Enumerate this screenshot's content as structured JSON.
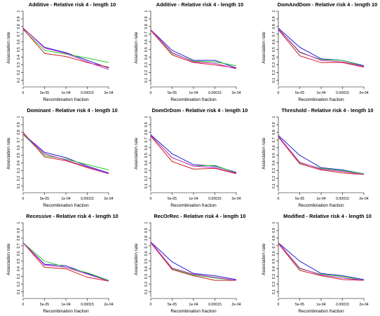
{
  "figure": {
    "x_ticks": [
      "0",
      "5e-05",
      "1e-04",
      "0.00015",
      "2e-04"
    ],
    "y_ticks": [
      "0.1",
      "0.2",
      "0.3",
      "0.4",
      "0.5",
      "0.6",
      "0.7",
      "0.8",
      "0.9",
      "1"
    ],
    "series_colors": [
      "#2222cc",
      "#22cc22",
      "#cc2222",
      "#cc22cc"
    ]
  },
  "chart_data": [
    {
      "type": "line",
      "title": "Additive  - Relative risk 4 - length 10",
      "xlabel": "Recombination fraction",
      "ylabel": "Association rate",
      "x": [
        0,
        5e-05,
        0.0001,
        0.00015,
        0.0002
      ],
      "ylim": [
        0.05,
        1.0
      ],
      "series": [
        {
          "values": [
            0.78,
            0.53,
            0.46,
            0.36,
            0.26
          ]
        },
        {
          "values": [
            0.76,
            0.49,
            0.44,
            0.39,
            0.33
          ]
        },
        {
          "values": [
            0.77,
            0.45,
            0.41,
            0.33,
            0.27
          ]
        },
        {
          "values": [
            0.78,
            0.52,
            0.45,
            0.34,
            0.24
          ]
        }
      ]
    },
    {
      "type": "line",
      "title": "Additive  - Relative risk 4 - length 10",
      "xlabel": "Recombination fraction",
      "ylabel": "Association rate",
      "x": [
        0,
        5e-05,
        0.0001,
        0.00015,
        0.0002
      ],
      "ylim": [
        0.05,
        1.0
      ],
      "series": [
        {
          "values": [
            0.76,
            0.49,
            0.36,
            0.36,
            0.26
          ]
        },
        {
          "values": [
            0.76,
            0.45,
            0.35,
            0.34,
            0.29
          ]
        },
        {
          "values": [
            0.75,
            0.43,
            0.33,
            0.3,
            0.26
          ]
        },
        {
          "values": [
            0.76,
            0.46,
            0.34,
            0.32,
            0.25
          ]
        }
      ]
    },
    {
      "type": "line",
      "title": "DomAndDom  - Relative risk 4 - length 10",
      "xlabel": "Recombination fraction",
      "ylabel": "Association rate",
      "x": [
        0,
        5e-05,
        0.0001,
        0.00015,
        0.0002
      ],
      "ylim": [
        0.05,
        1.0
      ],
      "series": [
        {
          "values": [
            0.78,
            0.53,
            0.38,
            0.36,
            0.29
          ]
        },
        {
          "values": [
            0.77,
            0.46,
            0.37,
            0.36,
            0.28
          ]
        },
        {
          "values": [
            0.76,
            0.42,
            0.33,
            0.33,
            0.27
          ]
        },
        {
          "values": [
            0.77,
            0.47,
            0.36,
            0.34,
            0.28
          ]
        }
      ]
    },
    {
      "type": "line",
      "title": "Dominant  - Relative risk 4 - length 10",
      "xlabel": "Recombination fraction",
      "ylabel": "Association rate",
      "x": [
        0,
        5e-05,
        0.0001,
        0.00015,
        0.0002
      ],
      "ylim": [
        0.05,
        1.0
      ],
      "series": [
        {
          "values": [
            0.78,
            0.54,
            0.47,
            0.36,
            0.27
          ]
        },
        {
          "values": [
            0.77,
            0.5,
            0.45,
            0.38,
            0.31
          ]
        },
        {
          "values": [
            0.8,
            0.48,
            0.43,
            0.34,
            0.26
          ]
        },
        {
          "values": [
            0.78,
            0.52,
            0.44,
            0.35,
            0.26
          ]
        }
      ]
    },
    {
      "type": "line",
      "title": "DomOrDom  - Relative risk 4 - length 10",
      "xlabel": "Recombination fraction",
      "ylabel": "Association rate",
      "x": [
        0,
        5e-05,
        0.0001,
        0.00015,
        0.0002
      ],
      "ylim": [
        0.05,
        1.0
      ],
      "series": [
        {
          "values": [
            0.77,
            0.52,
            0.38,
            0.36,
            0.28
          ]
        },
        {
          "values": [
            0.76,
            0.47,
            0.36,
            0.37,
            0.27
          ]
        },
        {
          "values": [
            0.75,
            0.42,
            0.32,
            0.33,
            0.26
          ]
        },
        {
          "values": [
            0.76,
            0.47,
            0.36,
            0.34,
            0.27
          ]
        }
      ]
    },
    {
      "type": "line",
      "title": "Threshold  - Relative risk 4 - length 10",
      "xlabel": "Recombination fraction",
      "ylabel": "Association rate",
      "x": [
        0,
        5e-05,
        0.0001,
        0.00015,
        0.0002
      ],
      "ylim": [
        0.05,
        1.0
      ],
      "series": [
        {
          "values": [
            0.76,
            0.5,
            0.34,
            0.31,
            0.26
          ]
        },
        {
          "values": [
            0.75,
            0.4,
            0.33,
            0.3,
            0.26
          ]
        },
        {
          "values": [
            0.74,
            0.39,
            0.31,
            0.27,
            0.25
          ]
        },
        {
          "values": [
            0.75,
            0.41,
            0.32,
            0.29,
            0.25
          ]
        }
      ]
    },
    {
      "type": "line",
      "title": "Recessive  - Relative risk 4 - length 10",
      "xlabel": "Recombination fraction",
      "ylabel": "Association rate",
      "x": [
        0,
        5e-05,
        0.0001,
        0.00015,
        0.0002
      ],
      "ylim": [
        0.05,
        1.0
      ],
      "series": [
        {
          "values": [
            0.74,
            0.46,
            0.44,
            0.34,
            0.25
          ]
        },
        {
          "values": [
            0.74,
            0.5,
            0.42,
            0.35,
            0.25
          ]
        },
        {
          "values": [
            0.74,
            0.42,
            0.4,
            0.29,
            0.24
          ]
        },
        {
          "values": [
            0.74,
            0.45,
            0.42,
            0.33,
            0.24
          ]
        }
      ]
    },
    {
      "type": "line",
      "title": "RecOrRec  - Relative risk 4 - length 10",
      "xlabel": "Recombination fraction",
      "ylabel": "Association rate",
      "x": [
        0,
        5e-05,
        0.0001,
        0.00015,
        0.0002
      ],
      "ylim": [
        0.05,
        1.0
      ],
      "series": [
        {
          "values": [
            0.75,
            0.49,
            0.34,
            0.31,
            0.26
          ]
        },
        {
          "values": [
            0.74,
            0.4,
            0.32,
            0.28,
            0.25
          ]
        },
        {
          "values": [
            0.74,
            0.39,
            0.31,
            0.25,
            0.25
          ]
        },
        {
          "values": [
            0.75,
            0.41,
            0.33,
            0.29,
            0.25
          ]
        }
      ]
    },
    {
      "type": "line",
      "title": "Modified  - Relative risk 4 - length 10",
      "xlabel": "Recombination fraction",
      "ylabel": "Association rate",
      "x": [
        0,
        5e-05,
        0.0001,
        0.00015,
        0.0002
      ],
      "ylim": [
        0.05,
        1.0
      ],
      "series": [
        {
          "values": [
            0.74,
            0.5,
            0.34,
            0.31,
            0.26
          ]
        },
        {
          "values": [
            0.74,
            0.4,
            0.33,
            0.3,
            0.25
          ]
        },
        {
          "values": [
            0.73,
            0.38,
            0.31,
            0.26,
            0.25
          ]
        },
        {
          "values": [
            0.74,
            0.41,
            0.32,
            0.28,
            0.25
          ]
        }
      ]
    }
  ]
}
